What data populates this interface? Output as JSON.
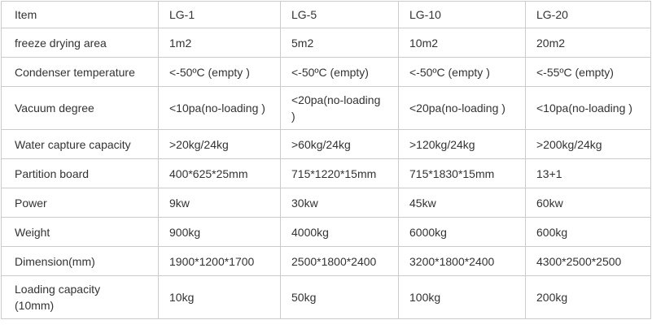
{
  "table": {
    "columns": [
      "Item",
      "LG-1",
      "LG-5",
      "LG-10",
      "LG-20"
    ],
    "rows": [
      {
        "label": "freeze drying area",
        "values": [
          "1m2",
          "5m2",
          "10m2",
          "20m2"
        ]
      },
      {
        "label": "Condenser temperature",
        "values": [
          "<-50ºC (empty )",
          "<-50ºC (empty)",
          "<-50ºC (empty )",
          "<-55ºC (empty)"
        ]
      },
      {
        "label": "Vacuum degree",
        "values": [
          "<10pa(no-loading )",
          "<20pa(no-loading\n)",
          "<20pa(no-loading )",
          "<10pa(no-loading )"
        ]
      },
      {
        "label": "Water capture capacity",
        "values": [
          ">20kg/24kg",
          ">60kg/24kg",
          ">120kg/24kg",
          ">200kg/24kg"
        ]
      },
      {
        "label": "Partition board",
        "values": [
          "400*625*25mm",
          "715*1220*15mm",
          "715*1830*15mm",
          "13+1"
        ]
      },
      {
        "label": "Power",
        "values": [
          "9kw",
          "30kw",
          "45kw",
          "60kw"
        ]
      },
      {
        "label": "Weight",
        "values": [
          "900kg",
          "4000kg",
          "6000kg",
          "600kg"
        ]
      },
      {
        "label": "Dimension(mm)",
        "values": [
          "1900*1200*1700",
          "2500*1800*2400",
          "3200*1800*2400",
          "4300*2500*2500"
        ]
      },
      {
        "label": "Loading capacity\n(10mm)",
        "values": [
          "10kg",
          "50kg",
          "100kg",
          "200kg"
        ]
      }
    ],
    "colors": {
      "border": "#cbcbcb",
      "text": "#333333",
      "background": "#ffffff"
    }
  }
}
